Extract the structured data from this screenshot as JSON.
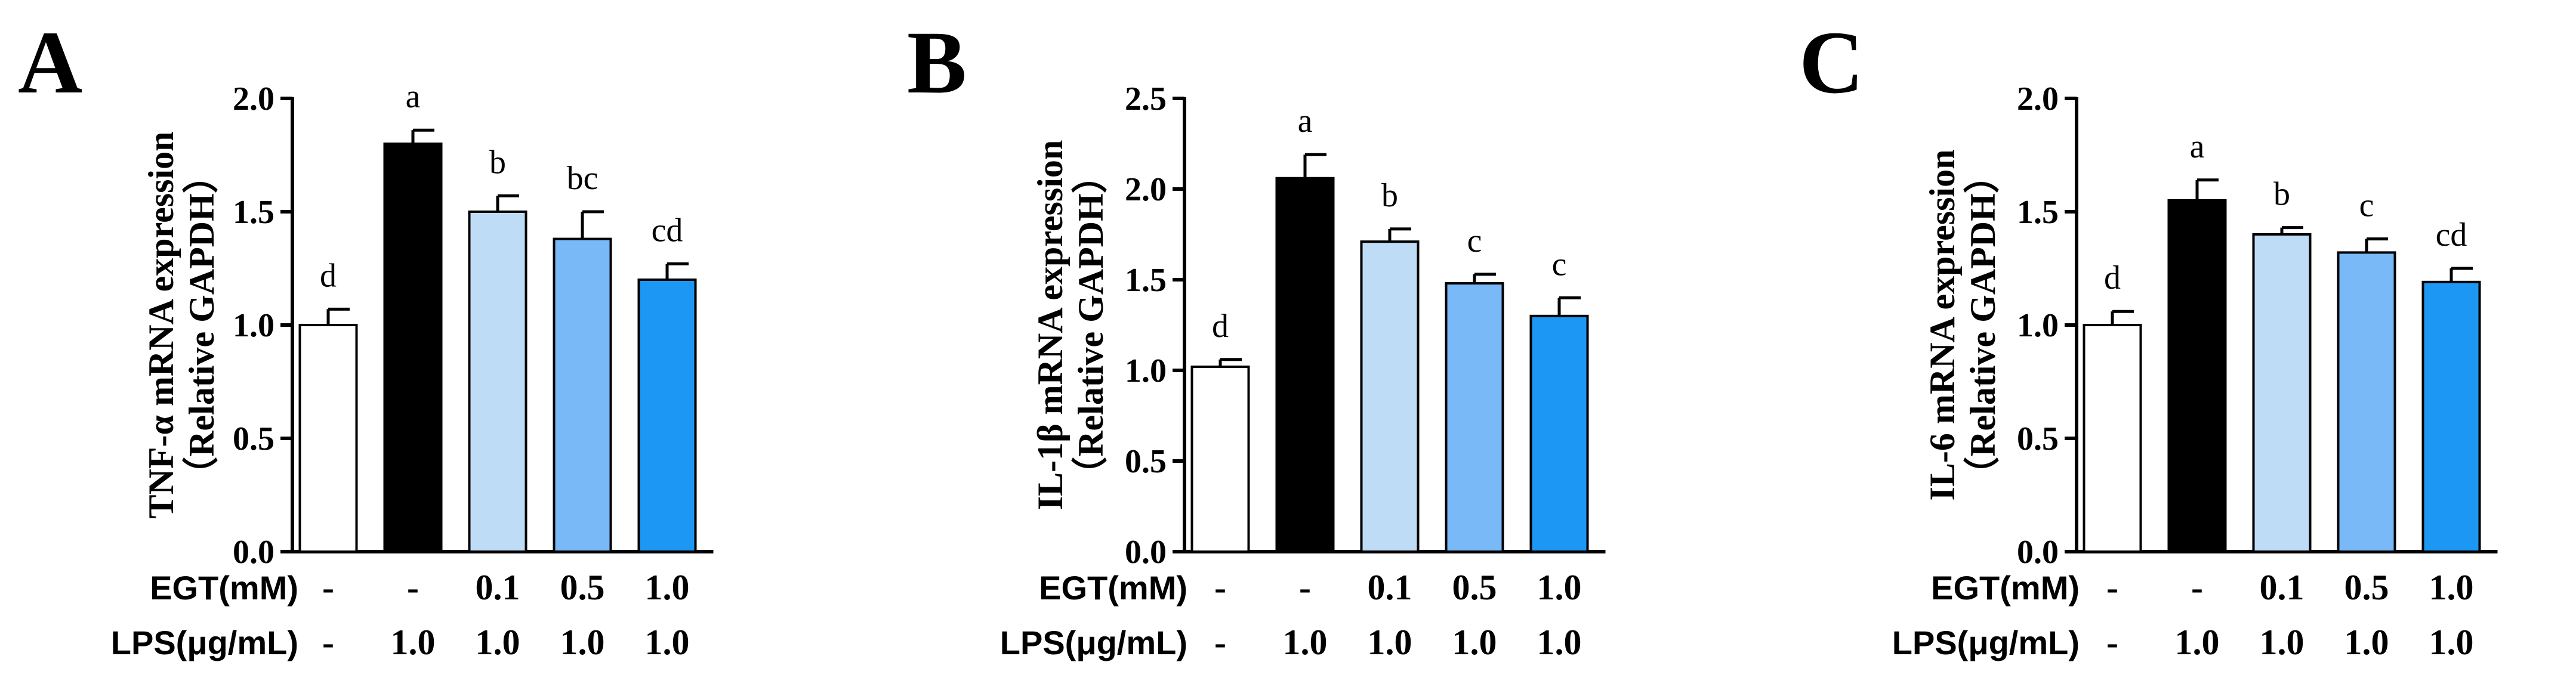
{
  "chart_data": [
    {
      "type": "bar",
      "panel": "A",
      "ylabel_line1": "TNF-α mRNA expression",
      "ylabel_line2": "（Relative GAPDH）",
      "ylim": [
        0,
        2.0
      ],
      "yticks": [
        "0.0",
        "0.5",
        "1.0",
        "1.5",
        "2.0"
      ],
      "ytick_values": [
        0,
        0.5,
        1.0,
        1.5,
        2.0
      ],
      "values": [
        1.0,
        1.8,
        1.5,
        1.38,
        1.2
      ],
      "errors": [
        0.07,
        0.06,
        0.07,
        0.12,
        0.07
      ],
      "letters": [
        "d",
        "a",
        "b",
        "bc",
        "cd"
      ],
      "rows": [
        {
          "label": "EGT(mM)",
          "values": [
            "-",
            "-",
            "0.1",
            "0.5",
            "1.0"
          ]
        },
        {
          "label": "LPS(μg/mL)",
          "values": [
            "-",
            "1.0",
            "1.0",
            "1.0",
            "1.0"
          ]
        }
      ]
    },
    {
      "type": "bar",
      "panel": "B",
      "ylabel_line1": "IL-1β mRNA expression",
      "ylabel_line2": "（Relative GAPDH）",
      "ylim": [
        0,
        2.5
      ],
      "yticks": [
        "0.0",
        "0.5",
        "1.0",
        "1.5",
        "2.0",
        "2.5"
      ],
      "ytick_values": [
        0,
        0.5,
        1.0,
        1.5,
        2.0,
        2.5
      ],
      "values": [
        1.02,
        2.06,
        1.71,
        1.48,
        1.3
      ],
      "errors": [
        0.04,
        0.13,
        0.07,
        0.05,
        0.1
      ],
      "letters": [
        "d",
        "a",
        "b",
        "c",
        "c"
      ],
      "rows": [
        {
          "label": "EGT(mM)",
          "values": [
            "-",
            "-",
            "0.1",
            "0.5",
            "1.0"
          ]
        },
        {
          "label": "LPS(μg/mL)",
          "values": [
            "-",
            "1.0",
            "1.0",
            "1.0",
            "1.0"
          ]
        }
      ]
    },
    {
      "type": "bar",
      "panel": "C",
      "ylabel_line1": "IL-6 mRNA expression",
      "ylabel_line2": "（Relative GAPDH）",
      "ylim": [
        0,
        2.0
      ],
      "yticks": [
        "0.0",
        "0.5",
        "1.0",
        "1.5",
        "2.0"
      ],
      "ytick_values": [
        0,
        0.5,
        1.0,
        1.5,
        2.0
      ],
      "values": [
        1.0,
        1.55,
        1.4,
        1.32,
        1.19
      ],
      "errors": [
        0.06,
        0.09,
        0.03,
        0.06,
        0.06
      ],
      "letters": [
        "d",
        "a",
        "b",
        "c",
        "cd"
      ],
      "rows": [
        {
          "label": "EGT(mM)",
          "values": [
            "-",
            "-",
            "0.1",
            "0.5",
            "1.0"
          ]
        },
        {
          "label": "LPS(μg/mL)",
          "values": [
            "-",
            "1.0",
            "1.0",
            "1.0",
            "1.0"
          ]
        }
      ]
    }
  ],
  "bar_colors": [
    "#ffffff",
    "#000000",
    "#bfdcf7",
    "#79b9f7",
    "#1c98f4"
  ]
}
